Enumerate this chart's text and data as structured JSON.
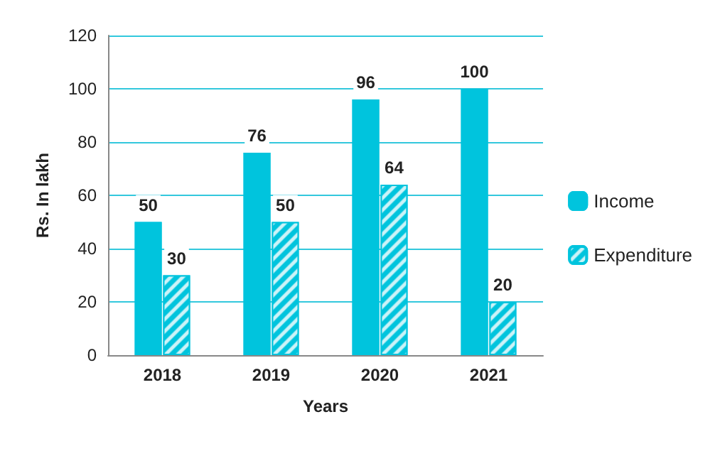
{
  "chart_data": {
    "type": "bar",
    "xlabel": "Years",
    "ylabel": "Rs. In lakh",
    "categories": [
      "2018",
      "2019",
      "2020",
      "2021"
    ],
    "series": [
      {
        "name": "Income",
        "color": "#00c4dd",
        "values": [
          50,
          76,
          96,
          100
        ]
      },
      {
        "name": "Expenditure",
        "color": "#00c4dd",
        "values": [
          30,
          50,
          64,
          20
        ]
      }
    ],
    "ylim": [
      0,
      120
    ],
    "yticks": [
      0,
      20,
      40,
      60,
      80,
      100,
      120
    ],
    "grid": "y",
    "legend": "right",
    "data_labels": true
  }
}
